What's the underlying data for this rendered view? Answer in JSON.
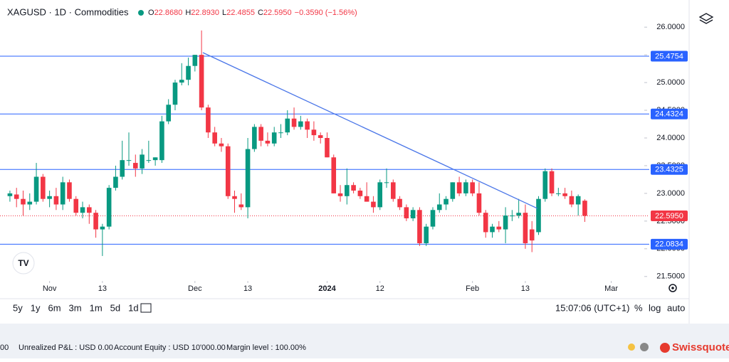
{
  "header": {
    "symbol": "XAGUSD · 1D · Commodities",
    "ohlc": [
      {
        "label": "O",
        "value": "22.8680"
      },
      {
        "label": "H",
        "value": "22.8930"
      },
      {
        "label": "L",
        "value": "22.4855"
      },
      {
        "label": "C",
        "value": "22.5950"
      }
    ],
    "change": "−0.3590 (−1.56%)"
  },
  "chart_data": {
    "type": "candlestick",
    "up_color": "#089981",
    "down_color": "#f23645",
    "open": [
      22.95,
      22.98,
      22.9,
      22.8,
      22.85,
      23.3,
      22.9,
      22.95,
      22.8,
      23.2,
      22.9,
      22.65,
      22.75,
      22.65,
      22.35,
      22.4,
      23.1,
      23.3,
      23.6,
      23.55,
      23.45,
      23.6,
      23.6,
      23.6,
      24.3,
      24.6,
      25.0,
      25.05,
      25.3,
      25.5,
      24.55,
      24.1,
      23.9,
      23.85,
      22.95,
      22.8,
      22.75,
      23.8,
      24.2,
      23.95,
      23.9,
      24.1,
      24.1,
      24.35,
      24.2,
      24.3,
      24.15,
      24.05,
      24.0,
      23.65,
      23.0,
      22.95,
      23.15,
      23.05,
      22.95,
      22.85,
      22.75,
      23.2,
      23.2,
      22.9,
      22.75,
      22.55,
      22.7,
      22.1,
      22.4,
      22.7,
      22.8,
      22.9,
      23.2,
      23.0,
      23.2,
      23.0,
      22.65,
      22.3,
      22.4,
      22.35,
      22.6,
      22.6,
      22.65,
      22.35,
      22.3,
      22.9,
      23.4,
      23.0,
      23.0,
      22.95,
      22.8,
      22.868
    ],
    "high": [
      23.05,
      23.1,
      23.05,
      23.0,
      23.55,
      23.35,
      23.05,
      23.1,
      23.3,
      23.25,
      22.95,
      22.85,
      22.8,
      22.7,
      22.45,
      23.15,
      23.5,
      23.95,
      24.1,
      23.7,
      23.8,
      23.95,
      23.65,
      24.4,
      24.7,
      25.05,
      25.35,
      25.45,
      25.5,
      25.94,
      24.6,
      24.2,
      24.0,
      23.9,
      23.05,
      23.0,
      24.0,
      24.25,
      24.25,
      24.1,
      24.2,
      24.25,
      24.5,
      24.55,
      24.4,
      24.35,
      24.3,
      24.1,
      24.1,
      23.7,
      23.15,
      23.45,
      23.2,
      23.1,
      23.2,
      22.95,
      23.25,
      23.45,
      23.25,
      22.95,
      22.8,
      22.75,
      22.75,
      22.45,
      22.75,
      23.0,
      22.95,
      23.2,
      23.3,
      23.25,
      23.25,
      23.2,
      22.7,
      22.45,
      22.5,
      22.75,
      22.7,
      22.9,
      22.8,
      22.5,
      22.95,
      23.45,
      23.45,
      23.1,
      23.1,
      23.05,
      22.98,
      22.893
    ],
    "low": [
      22.85,
      22.75,
      22.6,
      22.7,
      22.8,
      22.85,
      22.75,
      22.7,
      22.7,
      22.85,
      22.6,
      22.55,
      22.45,
      22.2,
      21.87,
      22.35,
      23.05,
      23.25,
      23.5,
      23.3,
      23.35,
      23.55,
      23.5,
      23.55,
      24.25,
      24.5,
      24.95,
      24.95,
      25.2,
      24.5,
      24.0,
      23.85,
      23.75,
      22.9,
      22.65,
      22.7,
      22.55,
      23.75,
      23.85,
      23.85,
      23.85,
      24.0,
      24.05,
      24.15,
      24.15,
      24.0,
      23.95,
      23.9,
      23.65,
      23.0,
      22.85,
      22.8,
      23.0,
      22.9,
      22.85,
      22.65,
      22.7,
      23.1,
      22.85,
      22.7,
      22.5,
      22.5,
      22.05,
      22.05,
      22.35,
      22.65,
      22.7,
      22.85,
      22.95,
      22.95,
      22.95,
      22.6,
      22.2,
      22.2,
      22.3,
      22.1,
      22.5,
      22.55,
      22.0,
      21.94,
      22.25,
      22.85,
      22.95,
      22.95,
      22.9,
      22.75,
      22.6,
      22.4855
    ],
    "close": [
      23.0,
      22.9,
      22.8,
      22.85,
      23.3,
      22.9,
      22.95,
      22.8,
      23.2,
      22.9,
      22.65,
      22.75,
      22.65,
      22.35,
      22.4,
      23.1,
      23.3,
      23.6,
      23.6,
      23.45,
      23.7,
      23.6,
      23.65,
      24.3,
      24.6,
      25.0,
      25.05,
      25.3,
      25.5,
      24.55,
      24.1,
      23.9,
      23.85,
      22.95,
      22.9,
      22.75,
      23.8,
      24.2,
      23.95,
      23.9,
      24.1,
      24.1,
      24.35,
      24.2,
      24.3,
      24.15,
      24.05,
      24.0,
      23.65,
      23.0,
      22.95,
      23.15,
      23.05,
      22.95,
      22.85,
      22.75,
      23.2,
      23.2,
      22.9,
      22.75,
      22.55,
      22.7,
      22.1,
      22.4,
      22.7,
      22.8,
      22.9,
      23.2,
      23.0,
      23.2,
      23.0,
      22.65,
      22.3,
      22.4,
      22.35,
      22.6,
      22.6,
      22.65,
      22.1,
      22.15,
      22.9,
      23.4,
      23.0,
      23.0,
      22.95,
      22.8,
      22.95,
      22.595
    ],
    "xlim": [
      -1.5,
      96
    ],
    "xticks": [
      {
        "value": 6,
        "label": "Nov"
      },
      {
        "value": 14,
        "label": "13"
      },
      {
        "value": 28,
        "label": "Dec"
      },
      {
        "value": 36,
        "label": "13"
      },
      {
        "value": 48,
        "label": "2024"
      },
      {
        "value": 56,
        "label": "12"
      },
      {
        "value": 70,
        "label": "Feb"
      },
      {
        "value": 78,
        "label": "13"
      },
      {
        "value": 91,
        "label": "Mar"
      }
    ],
    "ylim": [
      21.42,
      26.49
    ],
    "yticks": [
      {
        "value": 21.5,
        "label": "21.5000"
      },
      {
        "value": 22,
        "label": "22.0000"
      },
      {
        "value": 22.5,
        "label": "22.5000"
      },
      {
        "value": 23,
        "label": "23.0000"
      },
      {
        "value": 23.5,
        "label": "23.5000"
      },
      {
        "value": 24,
        "label": "24.0000"
      },
      {
        "value": 24.5,
        "label": "24.5000"
      },
      {
        "value": 25,
        "label": "25.0000"
      },
      {
        "value": 25.5,
        "label": "25.5000"
      },
      {
        "value": 26,
        "label": "26.0000"
      }
    ],
    "levels": [
      {
        "value": 25.4754,
        "label": "25.4754"
      },
      {
        "value": 24.4324,
        "label": "24.4324"
      },
      {
        "value": 23.4325,
        "label": "23.4325"
      },
      {
        "value": 22.0834,
        "label": "22.0834"
      }
    ],
    "level_color": "#2962ff",
    "last_price": {
      "value": 22.595,
      "label": "22.5950"
    },
    "trend_line": {
      "x": [
        29.2,
        79.8
      ],
      "y": [
        25.54,
        22.73
      ],
      "color": "#4a76e8"
    }
  },
  "toolbar": {
    "ranges": [
      "5y",
      "1y",
      "6m",
      "3m",
      "1m",
      "5d",
      "1d"
    ],
    "time": "15:07:06 (UTC+1)",
    "options": [
      "%",
      "log",
      "auto"
    ]
  },
  "footer": {
    "balance": "00",
    "pnl": "Unrealized P&L : USD 0.00",
    "equity": "Account Equity : USD 10'000.00",
    "margin": "Margin level : 100.00%",
    "brand": "Swissquote"
  }
}
